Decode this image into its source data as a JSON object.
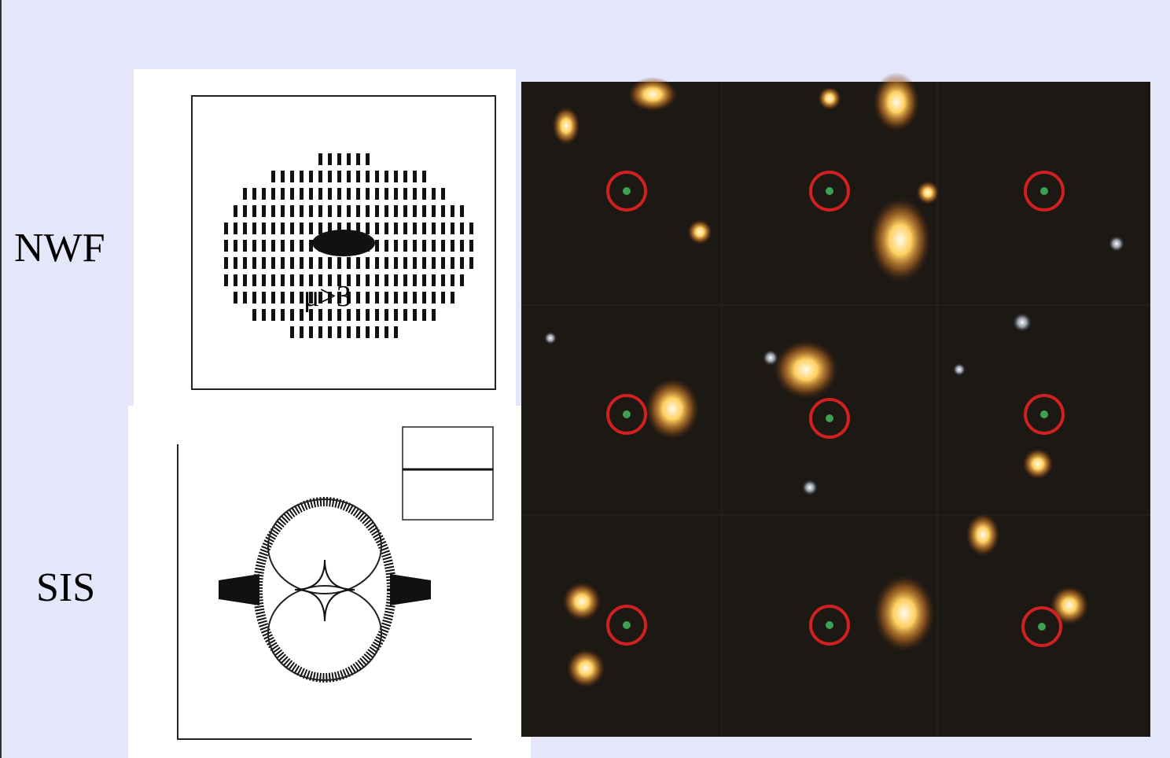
{
  "labels": {
    "nwf": "NWF",
    "sis": "SIS"
  },
  "annotations": {
    "magnification": "μ>3"
  }
}
